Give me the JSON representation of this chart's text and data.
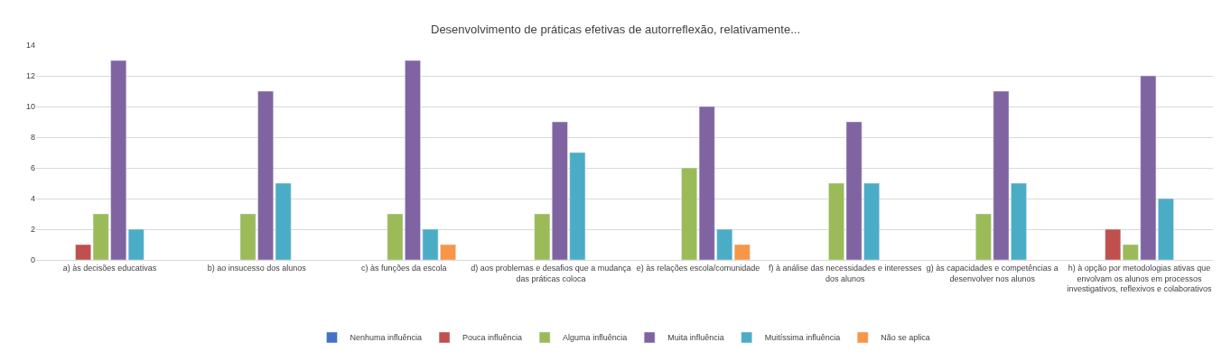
{
  "chart_data": {
    "type": "bar",
    "title": "Desenvolvimento de práticas efetivas de autorreflexão, relativamente...",
    "categories": [
      "a) às decisões educativas",
      "b) ao insucesso dos alunos",
      "c) às funções da escola",
      "d) aos problemas e desafios que a mudança das práticas coloca",
      "e) às relações escola/comunidade",
      "f) à análise das necessidades e interesses dos alunos",
      "g) às capacidades e competências a desenvolver nos alunos",
      "h) à opção por metodologias ativas que envolvam os alunos em processos investigativos, reflexivos e colaborativos"
    ],
    "series": [
      {
        "name": "Nenhuma influência",
        "color": "#4472c4",
        "values": [
          null,
          null,
          null,
          null,
          null,
          null,
          null,
          null
        ]
      },
      {
        "name": "Pouca influência",
        "color": "#c0504d",
        "values": [
          1,
          null,
          null,
          null,
          null,
          null,
          null,
          2
        ]
      },
      {
        "name": "Alguma influência",
        "color": "#9bbb59",
        "values": [
          3,
          3,
          3,
          3,
          6,
          5,
          3,
          1
        ]
      },
      {
        "name": "Muita influência",
        "color": "#8064a2",
        "values": [
          13,
          11,
          13,
          9,
          10,
          9,
          11,
          12
        ]
      },
      {
        "name": "Muitíssima influência",
        "color": "#4bacc6",
        "values": [
          2,
          5,
          2,
          7,
          2,
          5,
          5,
          4
        ]
      },
      {
        "name": "Não se aplica",
        "color": "#f79646",
        "values": [
          null,
          null,
          1,
          null,
          1,
          null,
          null,
          null
        ]
      }
    ],
    "ylim": [
      0,
      14
    ],
    "yticks": [
      0,
      2,
      4,
      6,
      8,
      10,
      12,
      14
    ],
    "grid": "y",
    "legend": "bottom"
  }
}
